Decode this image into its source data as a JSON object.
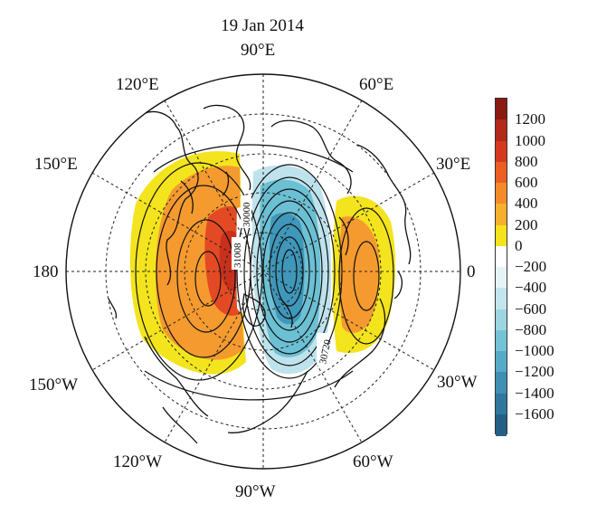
{
  "title": "19 Jan 2014",
  "longitude_labels": {
    "lon_90e": "90°E",
    "lon_120e": "120°E",
    "lon_60e": "60°E",
    "lon_150e": "150°E",
    "lon_30e": "30°E",
    "lon_180": "180",
    "lon_0": "0",
    "lon_150w": "150°W",
    "lon_30w": "30°W",
    "lon_120w": "120°W",
    "lon_60w": "60°W",
    "lon_90w": "90°W"
  },
  "contour_labels": [
    "30000",
    "30720",
    "31008"
  ],
  "colorbar": {
    "ticks": [
      "1200",
      "1000",
      "800",
      "600",
      "400",
      "200",
      "0",
      "−200",
      "−400",
      "−600",
      "−800",
      "−1000",
      "−1200",
      "−1400",
      "−1600"
    ],
    "colors": [
      "#8b1a10",
      "#b32a18",
      "#d63a1e",
      "#ec5f22",
      "#f58a2a",
      "#f7b02e",
      "#f4e21c",
      "#ffffff",
      "#e7f4f7",
      "#c3e6ee",
      "#9cd6e3",
      "#74c2d6",
      "#55aac8",
      "#3f8fb4",
      "#2f779f",
      "#245f86"
    ]
  },
  "colors": {
    "positive_strong": "#e34a24",
    "positive_mid": "#f59a2f",
    "positive_weak": "#f3e41d",
    "negative_weak": "#a7dbe6",
    "negative_mid": "#6cc0d4",
    "negative_strong": "#3f97ba"
  }
}
